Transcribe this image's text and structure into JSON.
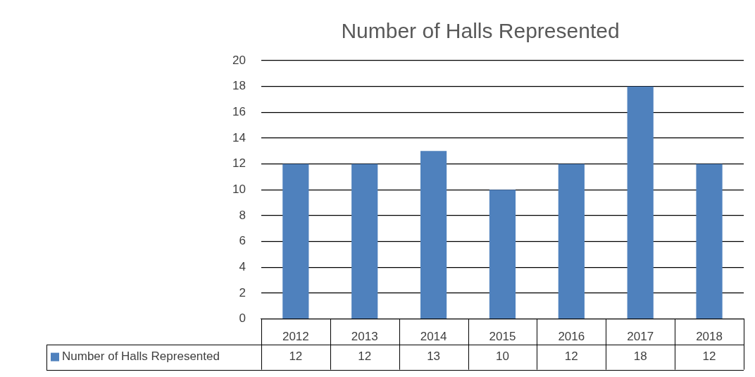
{
  "chart_data": {
    "type": "bar",
    "title": "Number of Halls Represented",
    "categories": [
      "2012",
      "2013",
      "2014",
      "2015",
      "2016",
      "2017",
      "2018"
    ],
    "series": [
      {
        "name": "Number of Halls Represented",
        "color": "#4f81bd",
        "values": [
          12,
          12,
          13,
          10,
          12,
          18,
          12
        ]
      }
    ],
    "ylim": [
      0,
      20
    ],
    "yticks": [
      0,
      2,
      4,
      6,
      8,
      10,
      12,
      14,
      16,
      18,
      20
    ],
    "grid": "y",
    "legend": "bottom",
    "data_labels": true
  }
}
